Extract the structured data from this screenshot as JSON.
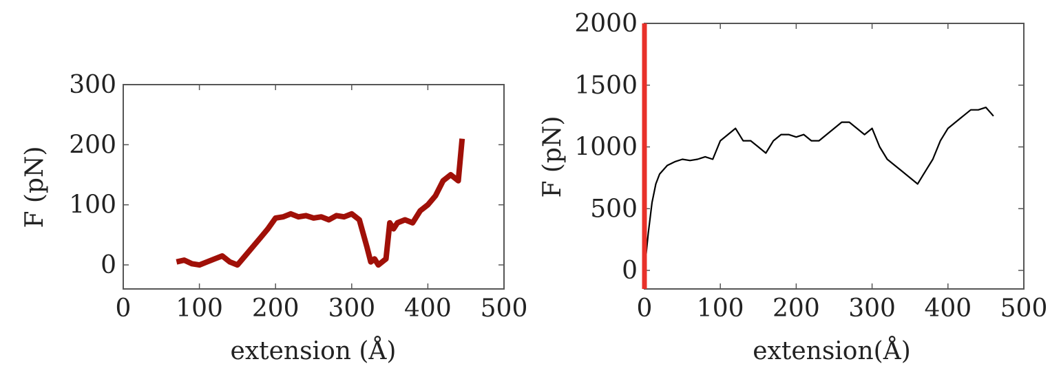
{
  "chart_data": [
    {
      "type": "line",
      "xlabel": "extension (Å)",
      "ylabel": "F (pN)",
      "xlim": [
        0,
        500
      ],
      "ylim": [
        -40,
        300
      ],
      "xticks": [
        0,
        100,
        200,
        300,
        400,
        500
      ],
      "yticks": [
        0,
        100,
        200,
        300
      ],
      "grid": false,
      "series": [
        {
          "color": "#a01008",
          "x": [
            70,
            80,
            90,
            100,
            110,
            120,
            130,
            140,
            150,
            160,
            170,
            180,
            190,
            200,
            210,
            220,
            230,
            240,
            250,
            260,
            270,
            280,
            290,
            300,
            310,
            320,
            325,
            330,
            335,
            340,
            345,
            350,
            355,
            360,
            370,
            380,
            390,
            400,
            410,
            420,
            430,
            440,
            445
          ],
          "y": [
            5,
            8,
            2,
            0,
            5,
            10,
            15,
            5,
            0,
            15,
            30,
            45,
            60,
            78,
            80,
            85,
            80,
            82,
            78,
            80,
            75,
            82,
            80,
            85,
            75,
            30,
            5,
            10,
            0,
            5,
            10,
            70,
            60,
            70,
            75,
            70,
            90,
            100,
            115,
            140,
            150,
            140,
            210
          ]
        }
      ]
    },
    {
      "type": "line",
      "xlabel": "extension(Å)",
      "ylabel": "F (pN)",
      "xlim": [
        0,
        500
      ],
      "ylim": [
        -150,
        2000
      ],
      "xticks": [
        0,
        100,
        200,
        300,
        400,
        500
      ],
      "yticks": [
        0,
        500,
        1000,
        1500,
        2000
      ],
      "grid": false,
      "series": [
        {
          "color": "#000000",
          "x": [
            0,
            5,
            10,
            15,
            20,
            30,
            40,
            50,
            60,
            70,
            80,
            90,
            100,
            110,
            120,
            130,
            140,
            150,
            160,
            170,
            180,
            190,
            200,
            210,
            220,
            230,
            240,
            250,
            260,
            270,
            280,
            290,
            300,
            310,
            320,
            330,
            340,
            350,
            360,
            370,
            380,
            390,
            400,
            410,
            420,
            430,
            440,
            450,
            460
          ],
          "y": [
            0,
            300,
            550,
            700,
            780,
            850,
            880,
            900,
            890,
            900,
            920,
            900,
            1050,
            1100,
            1150,
            1050,
            1050,
            1000,
            950,
            1050,
            1100,
            1100,
            1080,
            1100,
            1050,
            1050,
            1100,
            1150,
            1200,
            1200,
            1150,
            1100,
            1150,
            1000,
            900,
            850,
            800,
            750,
            700,
            800,
            900,
            1050,
            1150,
            1200,
            1250,
            1300,
            1300,
            1320,
            1250
          ]
        },
        {
          "color": "#e8312a",
          "x": [
            0,
            0
          ],
          "y": [
            -150,
            2000
          ]
        }
      ]
    }
  ]
}
